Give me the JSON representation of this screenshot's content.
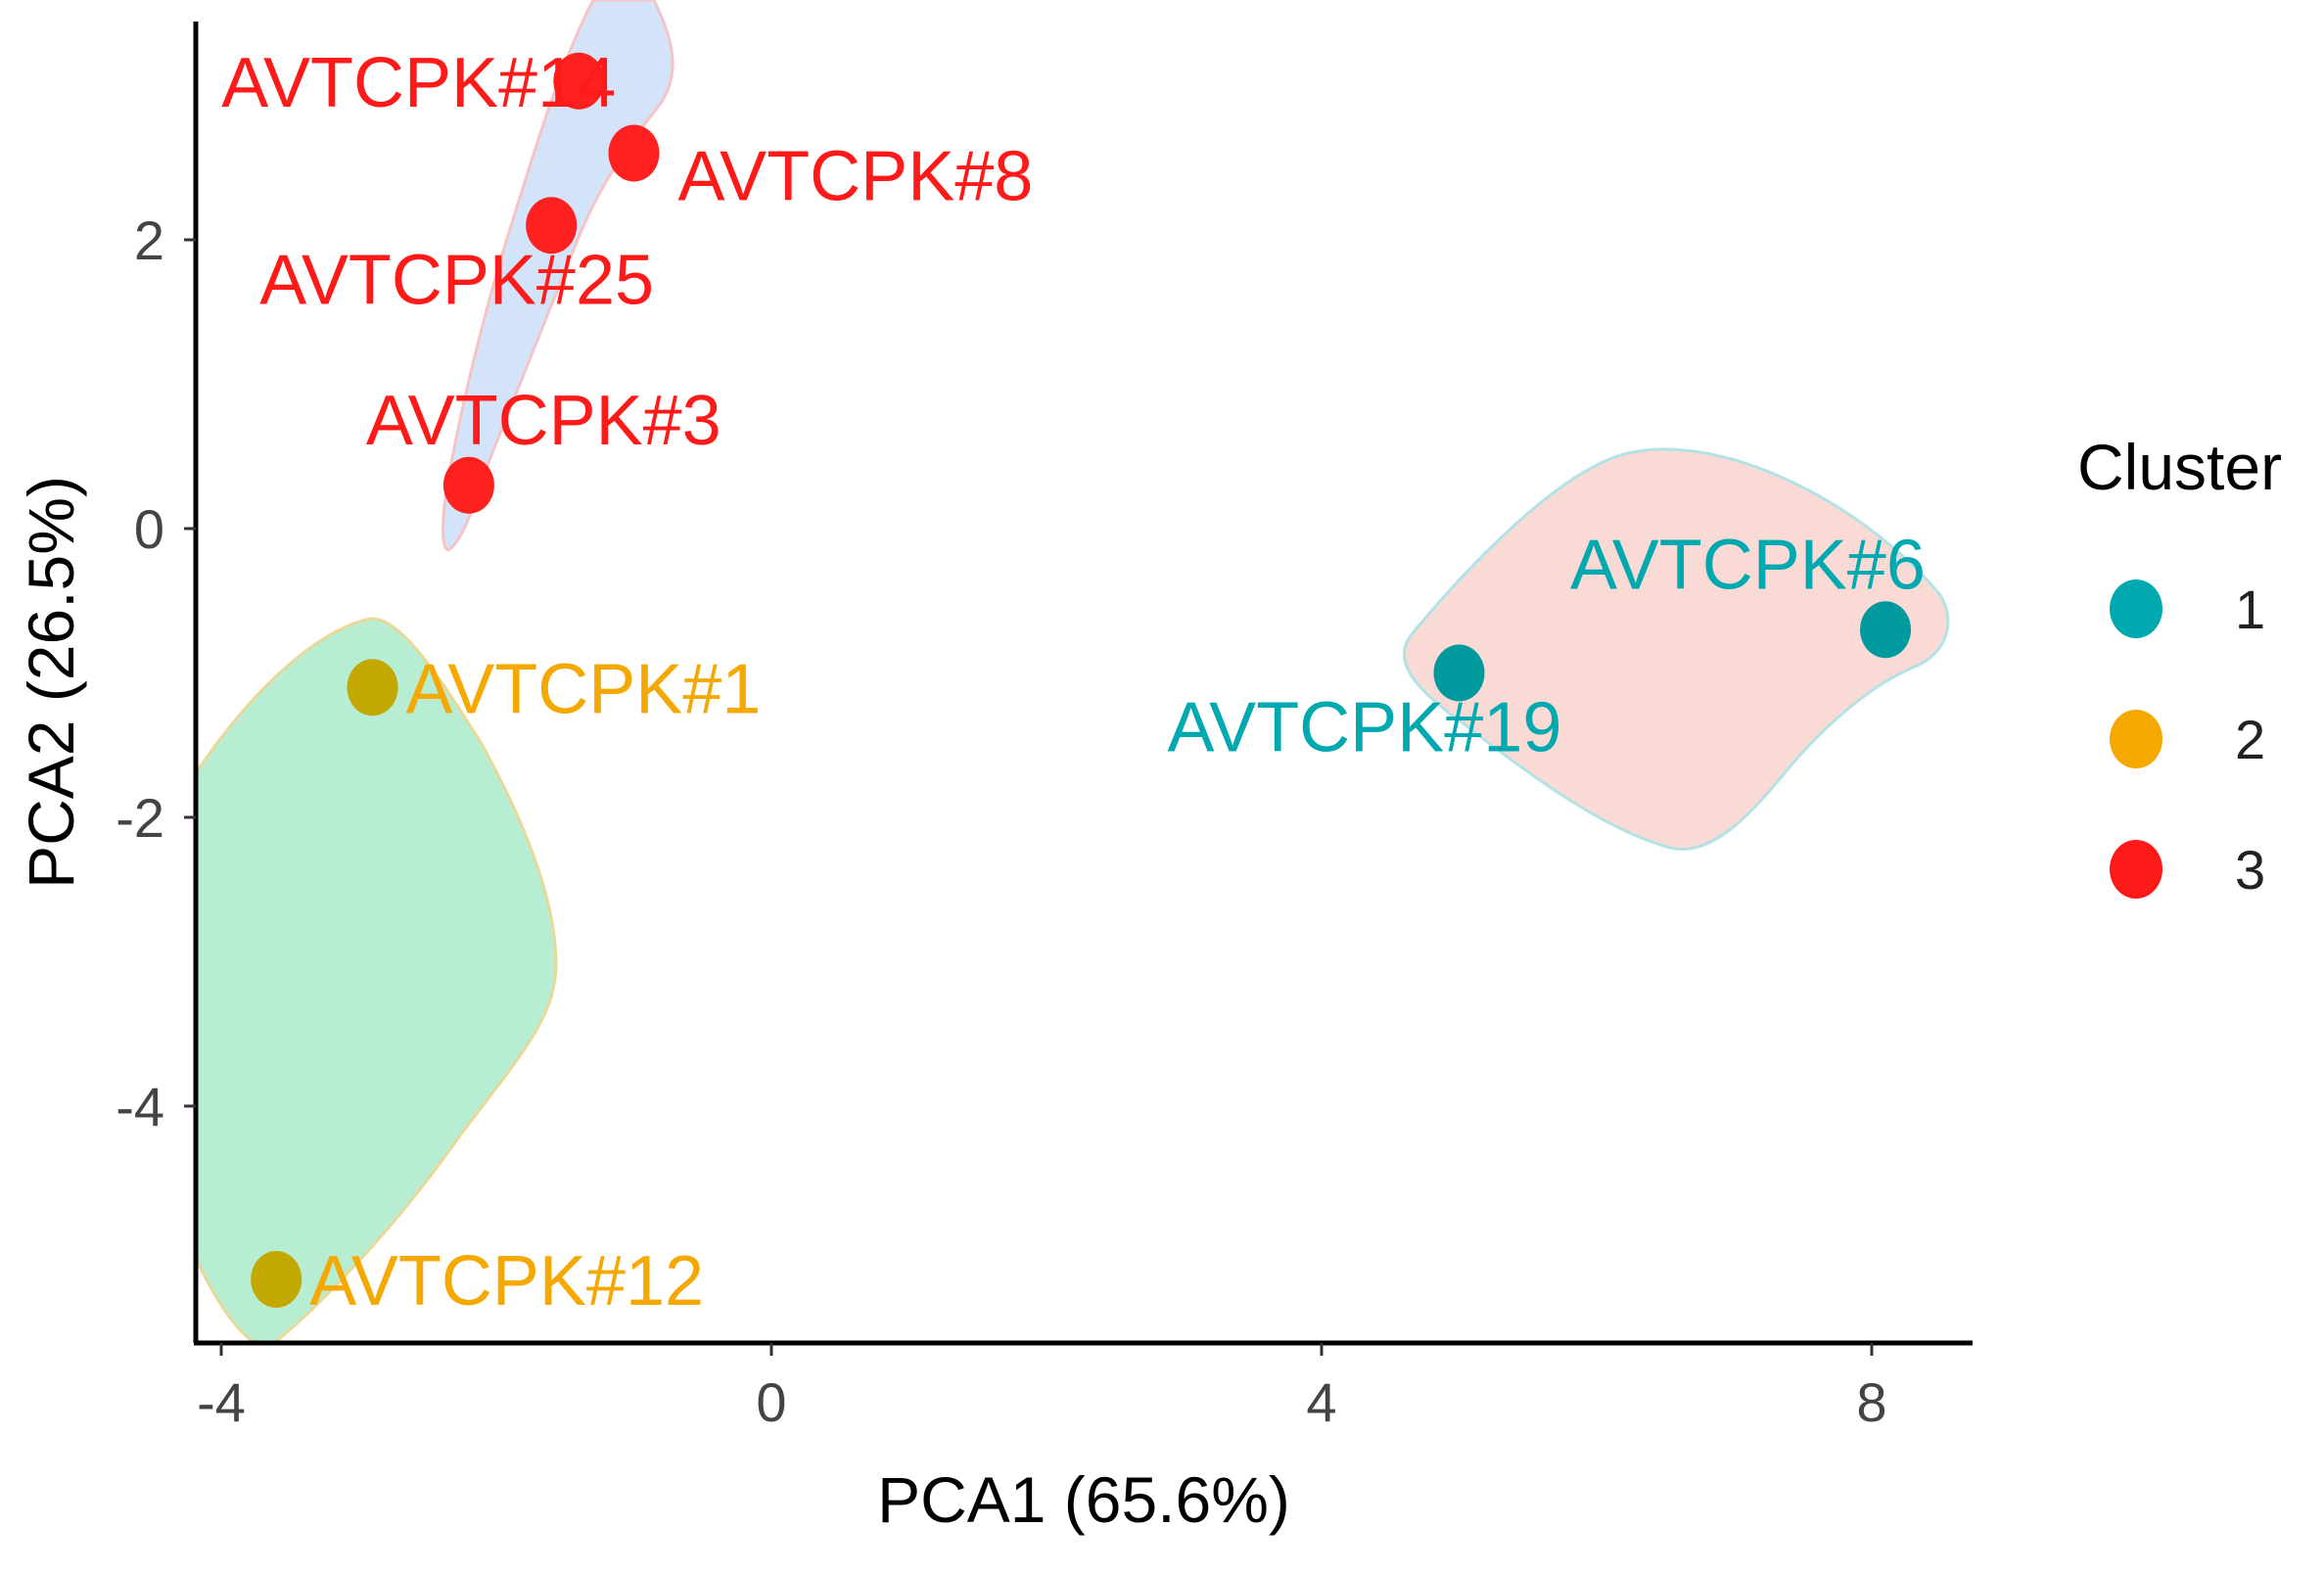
{
  "chart_data": {
    "type": "scatter",
    "xlabel": "PCA1 (65.6%)",
    "ylabel": "PCA2 (26.5%)",
    "xlim": [
      -4.3,
      8.6
    ],
    "ylim": [
      -5.6,
      3.5
    ],
    "x_ticks": [
      -4,
      0,
      4,
      8
    ],
    "y_ticks": [
      -4,
      -2,
      0,
      2
    ],
    "x_tick_labels": [
      "-4",
      "0",
      "4",
      "8"
    ],
    "y_tick_labels": [
      "-4",
      "-2",
      "0",
      "2"
    ],
    "grid": false,
    "legend": {
      "title": "Cluster",
      "position": "right",
      "entries": [
        {
          "label": "1",
          "color": "#00A9B0"
        },
        {
          "label": "2",
          "color": "#F5A800"
        },
        {
          "label": "3",
          "color": "#FF1A1A"
        }
      ]
    },
    "series": [
      {
        "name": "1",
        "color": "#00A9B0",
        "marker_color": "#00999E",
        "hull_fill": "#FADAD5",
        "hull_stroke": "#B2E2E4",
        "points": [
          {
            "label": "AVTCPK#6",
            "x": 8.1,
            "y": -0.7,
            "label_pos": "above-left"
          },
          {
            "label": "AVTCPK#19",
            "x": 5.0,
            "y": -1.0,
            "label_pos": "below-left"
          }
        ]
      },
      {
        "name": "2",
        "color": "#F5A800",
        "marker_color": "#C2A800",
        "hull_fill": "#B6EDD3",
        "hull_stroke": "#EAD898",
        "points": [
          {
            "label": "AVTCPK#1",
            "x": -2.9,
            "y": -1.1,
            "label_pos": "right"
          },
          {
            "label": "AVTCPK#12",
            "x": -3.6,
            "y": -5.2,
            "label_pos": "right"
          }
        ]
      },
      {
        "name": "3",
        "color": "#FF1A1A",
        "marker_color": "#FF2020",
        "hull_fill": "#D2E3FA",
        "hull_stroke": "#F6C4C4",
        "points": [
          {
            "label": "AVTCPK#14",
            "x": -1.4,
            "y": 3.1,
            "label_pos": "left"
          },
          {
            "label": "AVTCPK#8",
            "x": -1.0,
            "y": 2.6,
            "label_pos": "below-right"
          },
          {
            "label": "AVTCPK#25",
            "x": -1.6,
            "y": 2.1,
            "label_pos": "below-left"
          },
          {
            "label": "AVTCPK#3",
            "x": -2.2,
            "y": 0.3,
            "label_pos": "above"
          }
        ]
      }
    ]
  }
}
